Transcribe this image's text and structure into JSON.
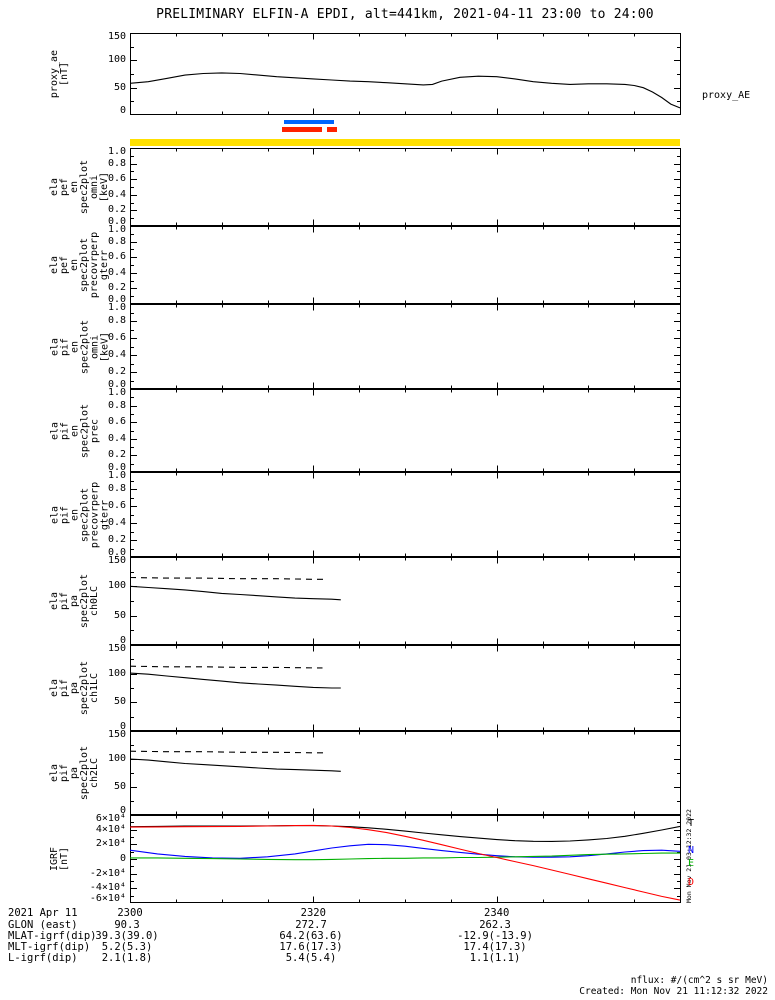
{
  "title": "PRELIMINARY ELFIN-A EPDI, alt=441km, 2021-04-11 23:00 to 24:00",
  "labels": {
    "proxy_right": "proxy_AE"
  },
  "notes": {
    "nflux": "nflux: #/(cm^2 s sr MeV)",
    "created": "Created: Mon Nov 21 11:12:32 2022",
    "side_timestamp": "Mon Nov 21 03:12:32 2022"
  },
  "xaxis": {
    "xmin": 0,
    "xmax": 60,
    "major_ticks": [
      0,
      20,
      40,
      60
    ],
    "minor_ticks": [
      5,
      10,
      15,
      25,
      30,
      35,
      45,
      50,
      55
    ],
    "tick_labels": [
      {
        "v": 0,
        "label": "2300"
      },
      {
        "v": 20,
        "label": "2320"
      },
      {
        "v": 40,
        "label": "2340"
      }
    ]
  },
  "bottom_axis": {
    "date_label": "2021 Apr 11",
    "rows": [
      {
        "label": "GLON (east)",
        "values": [
          "90.3",
          "272.7",
          "262.3"
        ]
      },
      {
        "label": "MLAT-igrf(dip)",
        "values": [
          "39.3(39.0)",
          "64.2(63.6)",
          "-12.9(-13.9)"
        ]
      },
      {
        "label": "MLT-igrf(dip)",
        "values": [
          "5.2(5.3)",
          "17.6(17.3)",
          "17.4(17.3)"
        ]
      },
      {
        "label": "L-igrf(dip)",
        "values": [
          "2.1(1.8)",
          "5.4(5.4)",
          "1.1(1.1)"
        ]
      }
    ]
  },
  "chart_data": [
    {
      "id": "proxy_ae",
      "type": "line",
      "ylabel_lines": [
        "proxy_ae",
        "[nT]"
      ],
      "ylim": [
        0,
        150
      ],
      "yticks": [
        {
          "v": 0,
          "label": "0"
        },
        {
          "v": 50,
          "label": "50"
        },
        {
          "v": 100,
          "label": "100"
        },
        {
          "v": 150,
          "label": "150"
        }
      ],
      "yminor": [
        25,
        75,
        125
      ],
      "series": [
        {
          "name": "proxy_AE",
          "color": "#000000",
          "dashed": false,
          "x": [
            0,
            2,
            4,
            6,
            8,
            10,
            12,
            14,
            16,
            18,
            20,
            22,
            24,
            26,
            28,
            30,
            32,
            33,
            34,
            36,
            38,
            40,
            42,
            44,
            46,
            48,
            50,
            52,
            54,
            55,
            56,
            57,
            58,
            59,
            60
          ],
          "y": [
            58,
            61,
            67,
            73,
            76,
            77,
            76,
            73,
            70,
            68,
            66,
            64,
            62,
            61,
            59,
            57,
            55,
            56,
            62,
            69,
            71,
            70,
            66,
            61,
            58,
            56,
            57,
            57,
            56,
            54,
            50,
            42,
            32,
            20,
            13
          ]
        }
      ]
    },
    {
      "id": "flags",
      "type": "bands",
      "bands": [
        {
          "name": "flag-bar-blue",
          "color": "#0066ff",
          "row": 0,
          "x0": 16.8,
          "x1": 22.2
        },
        {
          "name": "flag-bar-red",
          "color": "#ff2200",
          "row": 1,
          "x0": 16.6,
          "x1": 20.9
        },
        {
          "name": "flag-bar-red",
          "color": "#ff2200",
          "row": 1,
          "x0": 21.5,
          "x1": 22.6
        },
        {
          "name": "flag-bar-yellow",
          "color": "#ffe000",
          "row": 2,
          "x0": 0,
          "x1": 60
        }
      ]
    },
    {
      "id": "pef_en_omni",
      "type": "line",
      "ylabel_lines": [
        "ela",
        "pef",
        "en",
        "spec2plot",
        "omni",
        "[keV]"
      ],
      "ylim": [
        0,
        1
      ],
      "yticks": [
        {
          "v": 0,
          "label": "0.0"
        },
        {
          "v": 0.2,
          "label": "0.2"
        },
        {
          "v": 0.4,
          "label": "0.4"
        },
        {
          "v": 0.6,
          "label": "0.6"
        },
        {
          "v": 0.8,
          "label": "0.8"
        },
        {
          "v": 1,
          "label": "1.0"
        }
      ],
      "yminor": [
        0.1,
        0.3,
        0.5,
        0.7,
        0.9
      ],
      "series": []
    },
    {
      "id": "pef_en_precovrperp",
      "type": "line",
      "ylabel_lines": [
        "ela",
        "pef",
        "en",
        "spec2plot",
        "precovrperp",
        "gterr"
      ],
      "ylim": [
        0,
        1
      ],
      "yticks": [
        {
          "v": 0,
          "label": "0.0"
        },
        {
          "v": 0.2,
          "label": "0.2"
        },
        {
          "v": 0.4,
          "label": "0.4"
        },
        {
          "v": 0.6,
          "label": "0.6"
        },
        {
          "v": 0.8,
          "label": "0.8"
        },
        {
          "v": 1,
          "label": "1.0"
        }
      ],
      "yminor": [
        0.1,
        0.3,
        0.5,
        0.7,
        0.9
      ],
      "series": []
    },
    {
      "id": "pif_en_omni",
      "type": "line",
      "ylabel_lines": [
        "ela",
        "pif",
        "en",
        "spec2plot",
        "omni",
        "[keV]"
      ],
      "ylim": [
        0,
        1
      ],
      "yticks": [
        {
          "v": 0,
          "label": "0.0"
        },
        {
          "v": 0.2,
          "label": "0.2"
        },
        {
          "v": 0.4,
          "label": "0.4"
        },
        {
          "v": 0.6,
          "label": "0.6"
        },
        {
          "v": 0.8,
          "label": "0.8"
        },
        {
          "v": 1,
          "label": "1.0"
        }
      ],
      "yminor": [
        0.1,
        0.3,
        0.5,
        0.7,
        0.9
      ],
      "series": []
    },
    {
      "id": "pif_en_prec",
      "type": "line",
      "ylabel_lines": [
        "ela",
        "pif",
        "en",
        "spec2plot",
        "prec"
      ],
      "ylim": [
        0,
        1
      ],
      "yticks": [
        {
          "v": 0,
          "label": "0.0"
        },
        {
          "v": 0.2,
          "label": "0.2"
        },
        {
          "v": 0.4,
          "label": "0.4"
        },
        {
          "v": 0.6,
          "label": "0.6"
        },
        {
          "v": 0.8,
          "label": "0.8"
        },
        {
          "v": 1,
          "label": "1.0"
        }
      ],
      "yminor": [
        0.1,
        0.3,
        0.5,
        0.7,
        0.9
      ],
      "series": []
    },
    {
      "id": "pif_en_precovrperp",
      "type": "line",
      "ylabel_lines": [
        "ela",
        "pif",
        "en",
        "spec2plot",
        "precovrperp",
        "gterr"
      ],
      "ylim": [
        0,
        1
      ],
      "yticks": [
        {
          "v": 0,
          "label": "0.0"
        },
        {
          "v": 0.2,
          "label": "0.2"
        },
        {
          "v": 0.4,
          "label": "0.4"
        },
        {
          "v": 0.6,
          "label": "0.6"
        },
        {
          "v": 0.8,
          "label": "0.8"
        },
        {
          "v": 1,
          "label": "1.0"
        }
      ],
      "yminor": [
        0.1,
        0.3,
        0.5,
        0.7,
        0.9
      ],
      "series": []
    },
    {
      "id": "pif_pa_ch0",
      "type": "line",
      "ylabel_lines": [
        "ela",
        "pif",
        "pa",
        "spec2plot",
        "ch0LC"
      ],
      "ylim": [
        0,
        150
      ],
      "yticks": [
        {
          "v": 0,
          "label": "0"
        },
        {
          "v": 50,
          "label": "50"
        },
        {
          "v": 100,
          "label": "100"
        },
        {
          "v": 150,
          "label": "150"
        }
      ],
      "yminor": [
        25,
        75,
        125
      ],
      "series": [
        {
          "name": "ch0LC",
          "color": "#000000",
          "dashed": false,
          "x": [
            0,
            2,
            4,
            6,
            8,
            10,
            12,
            14,
            16,
            18,
            20,
            22,
            23
          ],
          "y": [
            100,
            98,
            96,
            94,
            91,
            88,
            86,
            84,
            82,
            80,
            79,
            78,
            77
          ]
        },
        {
          "name": "ch0LC-upper",
          "color": "#000000",
          "dashed": true,
          "x": [
            0,
            4,
            8,
            12,
            16,
            20,
            21.5
          ],
          "y": [
            115,
            114,
            114,
            113,
            113,
            112,
            112
          ]
        }
      ]
    },
    {
      "id": "pif_pa_ch1",
      "type": "line",
      "ylabel_lines": [
        "ela",
        "pif",
        "pa",
        "spec2plot",
        "ch1LC"
      ],
      "ylim": [
        0,
        150
      ],
      "yticks": [
        {
          "v": 0,
          "label": "0"
        },
        {
          "v": 50,
          "label": "50"
        },
        {
          "v": 100,
          "label": "100"
        },
        {
          "v": 150,
          "label": "150"
        }
      ],
      "yminor": [
        25,
        75,
        125
      ],
      "series": [
        {
          "name": "ch1LC",
          "color": "#000000",
          "dashed": false,
          "x": [
            0,
            2,
            4,
            6,
            8,
            10,
            12,
            14,
            16,
            18,
            20,
            22,
            23
          ],
          "y": [
            101,
            99,
            96,
            93,
            90,
            87,
            84,
            82,
            80,
            78,
            76,
            75,
            75
          ]
        },
        {
          "name": "ch1LC-upper",
          "color": "#000000",
          "dashed": true,
          "x": [
            0,
            4,
            8,
            12,
            16,
            20,
            21
          ],
          "y": [
            113,
            112,
            112,
            111,
            111,
            110,
            110
          ]
        }
      ]
    },
    {
      "id": "pif_pa_ch2",
      "type": "line",
      "ylabel_lines": [
        "ela",
        "pif",
        "pa",
        "spec2plot",
        "ch2LC"
      ],
      "ylim": [
        0,
        150
      ],
      "yticks": [
        {
          "v": 0,
          "label": "0"
        },
        {
          "v": 50,
          "label": "50"
        },
        {
          "v": 100,
          "label": "100"
        },
        {
          "v": 150,
          "label": "150"
        }
      ],
      "yminor": [
        25,
        75,
        125
      ],
      "series": [
        {
          "name": "ch2LC",
          "color": "#000000",
          "dashed": false,
          "x": [
            0,
            2,
            4,
            6,
            8,
            10,
            12,
            14,
            16,
            18,
            20,
            22,
            23
          ],
          "y": [
            100,
            98,
            95,
            92,
            90,
            88,
            86,
            84,
            82,
            81,
            80,
            79,
            78
          ]
        },
        {
          "name": "ch2LC-upper",
          "color": "#000000",
          "dashed": true,
          "x": [
            0,
            4,
            8,
            12,
            16,
            20,
            21.5
          ],
          "y": [
            114,
            113,
            113,
            112,
            112,
            111,
            111
          ]
        }
      ]
    },
    {
      "id": "igrf",
      "type": "line",
      "ylabel_lines": [
        "IGRF",
        "[nT]"
      ],
      "ylim": [
        -60000,
        60000
      ],
      "yticks": [
        {
          "v": -60000,
          "label": "-6×10⁴"
        },
        {
          "v": -40000,
          "label": "-4×10⁴"
        },
        {
          "v": -20000,
          "label": "-2×10⁴"
        },
        {
          "v": 0,
          "label": "0"
        },
        {
          "v": 20000,
          "label": "2×10⁴"
        },
        {
          "v": 40000,
          "label": "4×10⁴"
        },
        {
          "v": 60000,
          "label": "6×10⁴"
        }
      ],
      "yminor": [
        -50000,
        -30000,
        -10000,
        10000,
        30000,
        50000
      ],
      "series": [
        {
          "name": "T",
          "color": "#000000",
          "dashed": false,
          "x": [
            0,
            3,
            6,
            9,
            12,
            15,
            18,
            20,
            22,
            24,
            26,
            28,
            30,
            32,
            34,
            36,
            38,
            40,
            42,
            44,
            46,
            48,
            50,
            52,
            54,
            56,
            58,
            60
          ],
          "y": [
            44000,
            44500,
            45000,
            45000,
            45000,
            45200,
            45500,
            45500,
            45000,
            44000,
            42500,
            40500,
            38000,
            35500,
            33000,
            30500,
            28500,
            26500,
            25000,
            24200,
            24000,
            24500,
            26000,
            28000,
            31000,
            35000,
            39500,
            44500
          ]
        },
        {
          "name": "N",
          "color": "#0000ff",
          "dashed": false,
          "x": [
            0,
            3,
            6,
            9,
            12,
            15,
            18,
            20,
            22,
            24,
            26,
            28,
            30,
            32,
            34,
            36,
            38,
            40,
            42,
            44,
            46,
            48,
            50,
            52,
            54,
            56,
            58,
            60
          ],
          "y": [
            12000,
            7000,
            3500,
            1500,
            1000,
            3000,
            7000,
            11000,
            15000,
            18000,
            20000,
            19500,
            17500,
            14500,
            11500,
            9000,
            6500,
            4500,
            3000,
            2500,
            2500,
            3000,
            4500,
            7000,
            9500,
            11500,
            12000,
            10500
          ]
        },
        {
          "name": "E",
          "color": "#00b000",
          "dashed": false,
          "x": [
            0,
            3,
            6,
            9,
            12,
            15,
            18,
            20,
            22,
            24,
            26,
            28,
            30,
            32,
            34,
            36,
            38,
            40,
            42,
            44,
            46,
            48,
            50,
            52,
            54,
            56,
            58,
            60
          ],
          "y": [
            1500,
            1500,
            1000,
            500,
            0,
            -500,
            -1000,
            -1000,
            -500,
            0,
            500,
            1000,
            1000,
            1500,
            1500,
            2000,
            2000,
            2500,
            3000,
            3500,
            4000,
            5000,
            6000,
            6500,
            7000,
            7500,
            8000,
            8000
          ]
        },
        {
          "name": "D",
          "color": "#ff0000",
          "dashed": false,
          "x": [
            0,
            3,
            6,
            9,
            12,
            15,
            18,
            20,
            22,
            24,
            26,
            28,
            30,
            32,
            34,
            36,
            38,
            40,
            42,
            44,
            46,
            48,
            50,
            52,
            54,
            56,
            58,
            60
          ],
          "y": [
            43500,
            43800,
            44000,
            44200,
            44500,
            45000,
            45500,
            45800,
            45000,
            43000,
            40000,
            36000,
            31000,
            25500,
            19500,
            13500,
            7500,
            2000,
            -3500,
            -9000,
            -15000,
            -21000,
            -27000,
            -33000,
            -39000,
            -45000,
            -51000,
            -56000
          ]
        }
      ],
      "right_labels": [
        {
          "text": "T",
          "color": "#000000"
        },
        {
          "text": "N",
          "color": "#0000ff"
        },
        {
          "text": "E",
          "color": "#00b000"
        },
        {
          "text": "D",
          "color": "#ff0000"
        }
      ]
    }
  ]
}
